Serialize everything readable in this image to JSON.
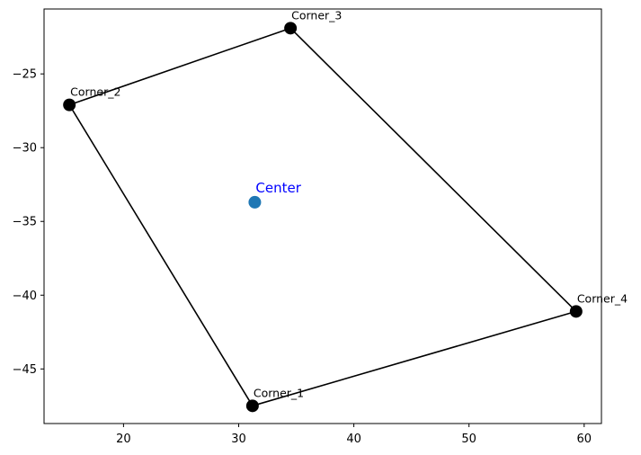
{
  "chart_data": {
    "type": "scatter",
    "title": "",
    "xlabel": "",
    "ylabel": "",
    "xlim": [
      13.1,
      61.5
    ],
    "ylim": [
      -48.7,
      -20.6
    ],
    "x_ticks": [
      20,
      30,
      40,
      50,
      60
    ],
    "y_ticks": [
      -45,
      -40,
      -35,
      -30,
      -25
    ],
    "x_tick_labels": [
      "20",
      "30",
      "40",
      "50",
      "60"
    ],
    "y_tick_labels": [
      "−45",
      "−40",
      "−35",
      "−30",
      "−25"
    ],
    "grid": false,
    "polygon_color": "#000000",
    "corner_color": "#000000",
    "center_color": "#1f77b4",
    "center_label_color": "#0000ff",
    "corners": [
      {
        "label": "Corner_1",
        "x": 31.2,
        "y": -47.5
      },
      {
        "label": "Corner_2",
        "x": 15.3,
        "y": -27.1
      },
      {
        "label": "Corner_3",
        "x": 34.5,
        "y": -21.9
      },
      {
        "label": "Corner_4",
        "x": 59.3,
        "y": -41.1
      }
    ],
    "center": {
      "label": "Center",
      "x": 31.4,
      "y": -33.7
    }
  }
}
